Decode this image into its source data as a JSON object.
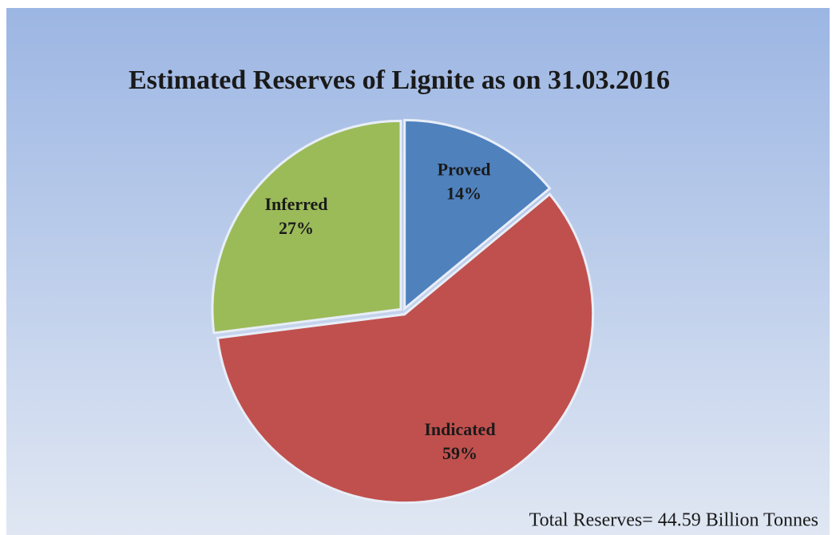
{
  "chart_data": {
    "type": "pie",
    "title": "Estimated Reserves of Lignite as on 31.03.2016",
    "categories": [
      "Proved",
      "Indicated",
      "Inferred"
    ],
    "values": [
      14,
      59,
      27
    ],
    "value_labels": [
      "14%",
      "59%",
      "27%"
    ],
    "colors": [
      "#4f81bd",
      "#c0504d",
      "#9bbb59"
    ],
    "annotation": "Total Reserves= 44.59 Billion Tonnes"
  }
}
